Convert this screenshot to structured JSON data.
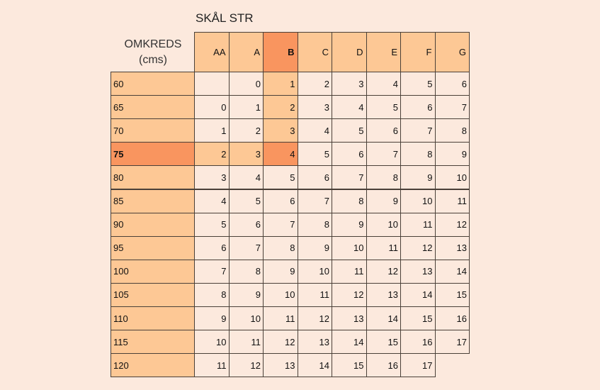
{
  "title": "SKÅL STR",
  "row_header": {
    "line1": "OMKREDS",
    "line2": "(cms)"
  },
  "colors": {
    "background": "#fce9dd",
    "light_orange": "#fdc895",
    "dark_orange": "#f9955f",
    "border": "#4a4038"
  },
  "highlight": {
    "column": "B",
    "row": "75"
  },
  "columns": [
    "AA",
    "A",
    "B",
    "C",
    "D",
    "E",
    "F",
    "G"
  ],
  "rows": [
    {
      "label": "60",
      "values": [
        "",
        "0",
        "1",
        "2",
        "3",
        "4",
        "5",
        "6"
      ]
    },
    {
      "label": "65",
      "values": [
        "0",
        "1",
        "2",
        "3",
        "4",
        "5",
        "6",
        "7"
      ]
    },
    {
      "label": "70",
      "values": [
        "1",
        "2",
        "3",
        "4",
        "5",
        "6",
        "7",
        "8"
      ]
    },
    {
      "label": "75",
      "values": [
        "2",
        "3",
        "4",
        "5",
        "6",
        "7",
        "8",
        "9"
      ]
    },
    {
      "label": "80",
      "values": [
        "3",
        "4",
        "5",
        "6",
        "7",
        "8",
        "9",
        "10"
      ]
    },
    {
      "label": "85",
      "values": [
        "4",
        "5",
        "6",
        "7",
        "8",
        "9",
        "10",
        "11"
      ]
    },
    {
      "label": "90",
      "values": [
        "5",
        "6",
        "7",
        "8",
        "9",
        "10",
        "11",
        "12"
      ]
    },
    {
      "label": "95",
      "values": [
        "6",
        "7",
        "8",
        "9",
        "10",
        "11",
        "12",
        "13"
      ]
    },
    {
      "label": "100",
      "values": [
        "7",
        "8",
        "9",
        "10",
        "11",
        "12",
        "13",
        "14"
      ]
    },
    {
      "label": "105",
      "values": [
        "8",
        "9",
        "10",
        "11",
        "12",
        "13",
        "14",
        "15"
      ]
    },
    {
      "label": "110",
      "values": [
        "9",
        "10",
        "11",
        "12",
        "13",
        "14",
        "15",
        "16"
      ]
    },
    {
      "label": "115",
      "values": [
        "10",
        "11",
        "12",
        "13",
        "14",
        "15",
        "16",
        "17"
      ]
    },
    {
      "label": "120",
      "values": [
        "11",
        "12",
        "13",
        "14",
        "15",
        "16",
        "17",
        ""
      ]
    }
  ]
}
